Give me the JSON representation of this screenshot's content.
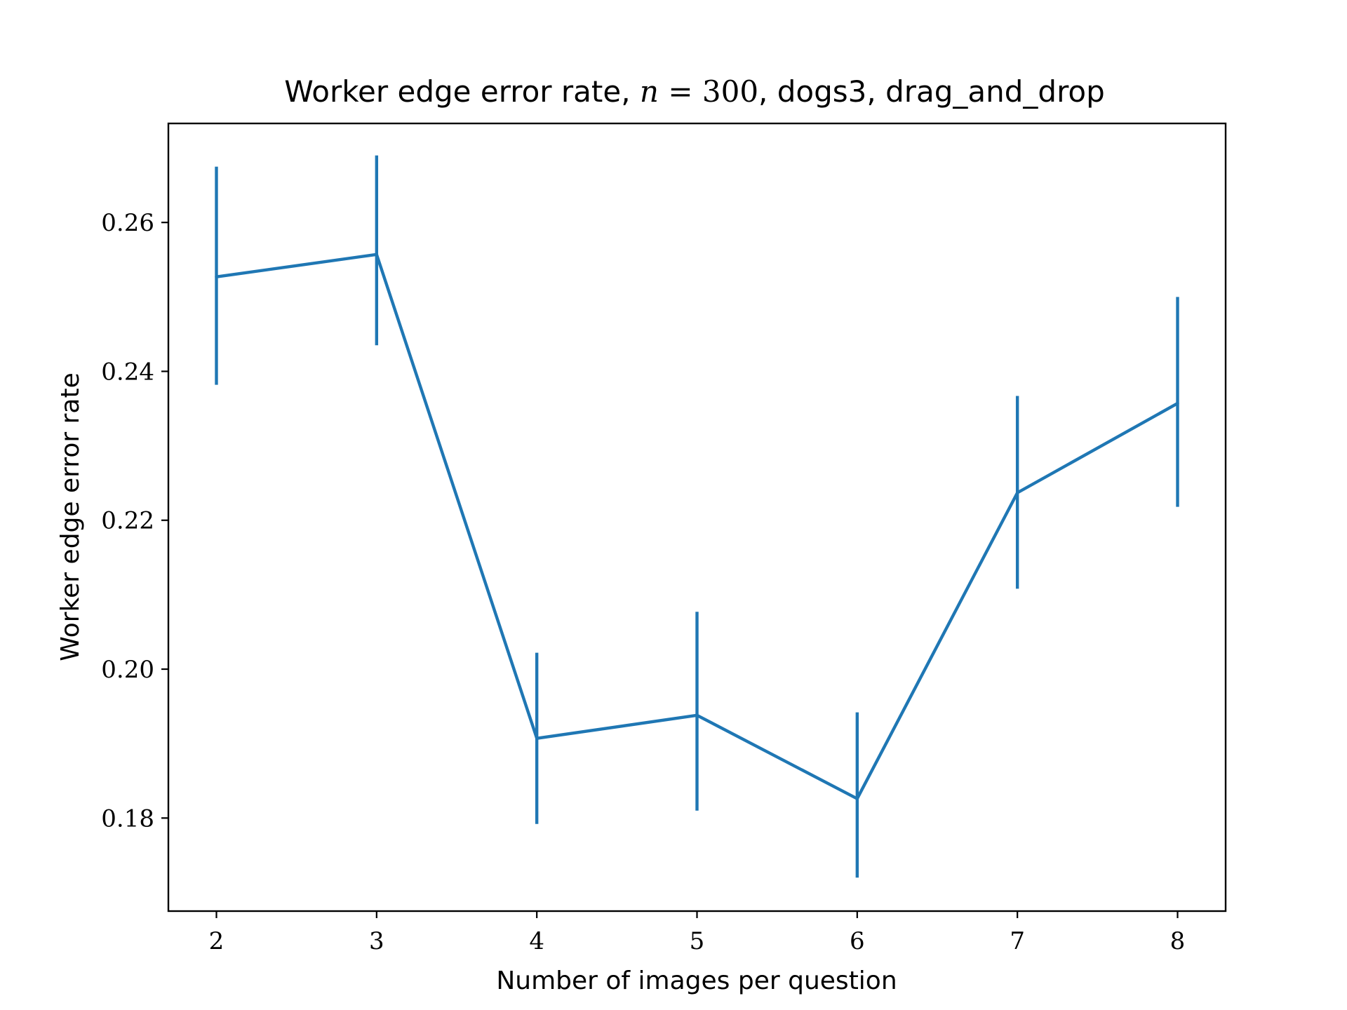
{
  "chart_data": {
    "type": "line",
    "title": "Worker edge error rate, n = 300, dogs3, drag_and_drop",
    "title_parts": {
      "prefix": "Worker edge error rate, ",
      "var": "n",
      "eq": " = 300",
      "suffix": ", dogs3, drag_and_drop"
    },
    "xlabel": "Number of images per question",
    "ylabel": "Worker edge error rate",
    "x": [
      2,
      3,
      4,
      5,
      6,
      7,
      8
    ],
    "series": [
      {
        "values": [
          0.2527,
          0.2557,
          0.1907,
          0.1938,
          0.1826,
          0.2237,
          0.2357
        ],
        "err_low": [
          0.2382,
          0.2435,
          0.1792,
          0.181,
          0.172,
          0.2108,
          0.2218
        ],
        "err_high": [
          0.2675,
          0.269,
          0.2022,
          0.2077,
          0.1942,
          0.2367,
          0.25
        ],
        "color": "#1f77b4"
      }
    ],
    "xlim": [
      1.7,
      8.3
    ],
    "ylim": [
      0.1675,
      0.2733
    ],
    "xticks": [
      "2",
      "3",
      "4",
      "5",
      "6",
      "7",
      "8"
    ],
    "yticks": [
      "0.18",
      "0.20",
      "0.22",
      "0.24",
      "0.26"
    ],
    "ytick_values": [
      0.18,
      0.2,
      0.22,
      0.24,
      0.26
    ],
    "grid": false
  }
}
